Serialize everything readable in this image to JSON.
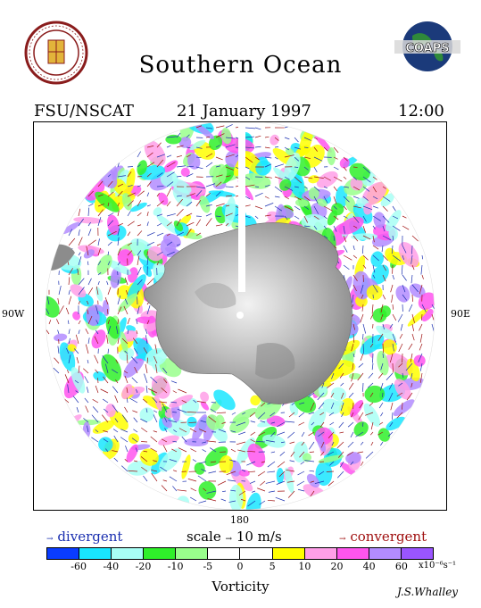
{
  "header": {
    "title": "Southern Ocean",
    "source": "FSU/NSCAT",
    "date": "21 January 1997",
    "time": "12:00"
  },
  "logos": {
    "left_seal_text": "FLORIDA STATE UNIVERSITY 1851",
    "right_logo_text": "COAPS"
  },
  "map": {
    "west_label": "90W",
    "east_label": "90E",
    "south_label": "180"
  },
  "legend": {
    "divergent": "divergent",
    "convergent": "convergent",
    "scale_prefix": "scale",
    "scale_value": "10 m/s",
    "divergent_color": "#1a2fb0",
    "convergent_color": "#a01010"
  },
  "colorbar": {
    "colors": [
      "#0a3cff",
      "#19e6ff",
      "#a8fff5",
      "#2ff02a",
      "#99ff8c",
      "#ffffff",
      "#ffffff",
      "#ffff00",
      "#ff9fe8",
      "#ff55ee",
      "#b38cff",
      "#9a55ff"
    ],
    "ticks": [
      "-60",
      "-40",
      "-20",
      "-10",
      "-5",
      "0",
      "5",
      "10",
      "20",
      "40",
      "60"
    ],
    "unit": "x10⁻⁶s⁻¹",
    "label": "Vorticity"
  },
  "signature": "J.S.Whalley"
}
